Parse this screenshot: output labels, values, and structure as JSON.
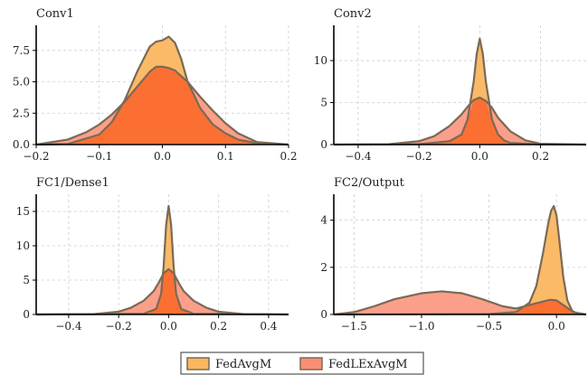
{
  "colors": {
    "fedavgm_fill": "#fbb660",
    "fedlexavgm_fill_light": "#fb8e76",
    "fedlexavgm_fill_dark": "#fb6a2c",
    "outline": "#7a6a55"
  },
  "legend": {
    "items": [
      {
        "name": "FedAvgM",
        "color": "#fbb660"
      },
      {
        "name": "FedLExAvgM",
        "color": "#fb8e76"
      }
    ],
    "position": "bottom-center"
  },
  "chart_data": [
    {
      "type": "area",
      "title": "Conv1",
      "xlim": [
        -0.2,
        0.2
      ],
      "ylim": [
        0,
        9.5
      ],
      "xticks": [
        -0.2,
        -0.1,
        0.0,
        0.1,
        0.2
      ],
      "xtick_labels": [
        "−0.2",
        "−0.1",
        "0.0",
        "0.1",
        "0.2"
      ],
      "yticks": [
        0,
        2.5,
        5,
        7.5
      ],
      "ytick_labels": [
        "0.0",
        "2.5",
        "5.0",
        "7.5"
      ],
      "grid": true,
      "series": [
        {
          "name": "FedAvgM",
          "x": [
            -0.2,
            -0.15,
            -0.1,
            -0.08,
            -0.06,
            -0.04,
            -0.02,
            -0.01,
            0.0,
            0.01,
            0.02,
            0.03,
            0.04,
            0.06,
            0.08,
            0.1,
            0.12,
            0.15,
            0.2
          ],
          "y": [
            0,
            0.05,
            0.8,
            1.8,
            3.5,
            5.8,
            7.8,
            8.2,
            8.3,
            8.6,
            8.1,
            6.8,
            5.0,
            2.9,
            1.6,
            0.9,
            0.4,
            0.1,
            0
          ]
        },
        {
          "name": "FedLExAvgM",
          "x": [
            -0.2,
            -0.15,
            -0.12,
            -0.1,
            -0.08,
            -0.06,
            -0.04,
            -0.02,
            -0.01,
            0.0,
            0.01,
            0.02,
            0.04,
            0.06,
            0.08,
            0.1,
            0.12,
            0.15,
            0.2
          ],
          "y": [
            0,
            0.4,
            1.0,
            1.6,
            2.4,
            3.4,
            4.6,
            5.8,
            6.2,
            6.2,
            6.1,
            5.9,
            5.0,
            3.8,
            2.7,
            1.7,
            0.9,
            0.2,
            0
          ]
        }
      ]
    },
    {
      "type": "area",
      "title": "Conv2",
      "xlim": [
        -0.48,
        0.35
      ],
      "ylim": [
        0,
        14.2
      ],
      "xticks": [
        -0.4,
        -0.2,
        0.0,
        0.2
      ],
      "xtick_labels": [
        "−0.4",
        "−0.2",
        "0.0",
        "0.2"
      ],
      "yticks": [
        0,
        5,
        10
      ],
      "ytick_labels": [
        "0",
        "5",
        "10"
      ],
      "grid": true,
      "series": [
        {
          "name": "FedAvgM",
          "x": [
            -0.48,
            -0.2,
            -0.1,
            -0.06,
            -0.04,
            -0.02,
            -0.01,
            0.0,
            0.01,
            0.02,
            0.04,
            0.06,
            0.08,
            0.1,
            0.2,
            0.35
          ],
          "y": [
            0,
            0.05,
            0.4,
            1.2,
            3.0,
            7.5,
            10.8,
            12.6,
            10.8,
            7.5,
            3.0,
            1.2,
            0.5,
            0.2,
            0.02,
            0
          ]
        },
        {
          "name": "FedLExAvgM",
          "x": [
            -0.48,
            -0.3,
            -0.2,
            -0.15,
            -0.1,
            -0.06,
            -0.04,
            -0.02,
            0.0,
            0.02,
            0.04,
            0.06,
            0.1,
            0.15,
            0.2,
            0.35
          ],
          "y": [
            0,
            0.05,
            0.4,
            1.0,
            2.2,
            3.6,
            4.5,
            5.3,
            5.6,
            5.2,
            4.4,
            3.2,
            1.6,
            0.5,
            0.1,
            0
          ]
        }
      ]
    },
    {
      "type": "area",
      "title": "FC1/Dense1",
      "xlim": [
        -0.53,
        0.48
      ],
      "ylim": [
        0,
        17.5
      ],
      "xticks": [
        -0.4,
        -0.2,
        0.0,
        0.2,
        0.4
      ],
      "xtick_labels": [
        "−0.4",
        "−0.2",
        "0.0",
        "0.2",
        "0.4"
      ],
      "yticks": [
        0,
        5,
        10,
        15
      ],
      "ytick_labels": [
        "0",
        "5",
        "10",
        "15"
      ],
      "grid": true,
      "series": [
        {
          "name": "FedAvgM",
          "x": [
            -0.53,
            -0.1,
            -0.05,
            -0.03,
            -0.02,
            -0.01,
            0.0,
            0.01,
            0.02,
            0.03,
            0.05,
            0.1,
            0.48
          ],
          "y": [
            0,
            0.1,
            0.8,
            3.0,
            7.0,
            13.0,
            15.8,
            13.0,
            7.0,
            3.0,
            0.8,
            0.1,
            0
          ]
        },
        {
          "name": "FedLExAvgM",
          "x": [
            -0.53,
            -0.3,
            -0.2,
            -0.15,
            -0.1,
            -0.06,
            -0.04,
            -0.02,
            0.0,
            0.02,
            0.04,
            0.06,
            0.1,
            0.15,
            0.2,
            0.3,
            0.48
          ],
          "y": [
            0,
            0.05,
            0.4,
            1.0,
            2.0,
            3.4,
            4.6,
            6.0,
            6.6,
            6.0,
            4.6,
            3.4,
            2.0,
            1.0,
            0.4,
            0.05,
            0
          ]
        }
      ]
    },
    {
      "type": "area",
      "title": "FC2/Output",
      "xlim": [
        -1.65,
        0.22
      ],
      "ylim": [
        0,
        5.1
      ],
      "xticks": [
        -1.5,
        -1.0,
        -0.5,
        0.0
      ],
      "xtick_labels": [
        "−1.5",
        "−1.0",
        "−0.5",
        "0.0"
      ],
      "yticks": [
        0,
        2,
        4
      ],
      "ytick_labels": [
        "0",
        "2",
        "4"
      ],
      "grid": true,
      "series": [
        {
          "name": "FedAvgM",
          "x": [
            -1.65,
            -0.5,
            -0.3,
            -0.2,
            -0.15,
            -0.1,
            -0.06,
            -0.04,
            -0.02,
            0.0,
            0.02,
            0.05,
            0.08,
            0.12,
            0.22
          ],
          "y": [
            0,
            0.02,
            0.1,
            0.5,
            1.2,
            2.6,
            3.9,
            4.4,
            4.6,
            4.2,
            3.2,
            1.6,
            0.6,
            0.1,
            0
          ]
        },
        {
          "name": "FedLExAvgM",
          "x": [
            -1.65,
            -1.5,
            -1.35,
            -1.2,
            -1.0,
            -0.85,
            -0.7,
            -0.55,
            -0.4,
            -0.3,
            -0.2,
            -0.1,
            -0.05,
            0.0,
            0.05,
            0.1,
            0.15,
            0.22
          ],
          "y": [
            0,
            0.1,
            0.35,
            0.65,
            0.9,
            0.98,
            0.9,
            0.65,
            0.35,
            0.25,
            0.4,
            0.55,
            0.62,
            0.6,
            0.4,
            0.2,
            0.05,
            0
          ]
        }
      ]
    }
  ]
}
